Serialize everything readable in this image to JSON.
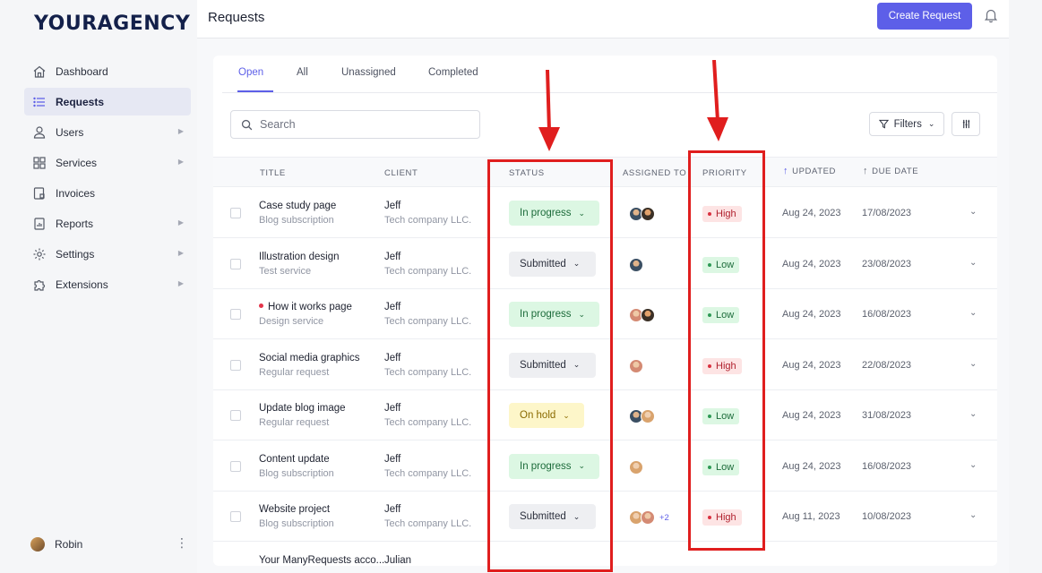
{
  "sidebar": {
    "logo": "YOURAGENCY",
    "items": [
      {
        "label": "Dashboard",
        "icon": "home-icon",
        "has_submenu": false,
        "active": false
      },
      {
        "label": "Requests",
        "icon": "list-icon",
        "has_submenu": false,
        "active": true
      },
      {
        "label": "Users",
        "icon": "users-icon",
        "has_submenu": true,
        "active": false
      },
      {
        "label": "Services",
        "icon": "grid-icon",
        "has_submenu": true,
        "active": false
      },
      {
        "label": "Invoices",
        "icon": "invoice-icon",
        "has_submenu": false,
        "active": false
      },
      {
        "label": "Reports",
        "icon": "report-icon",
        "has_submenu": true,
        "active": false
      },
      {
        "label": "Settings",
        "icon": "gear-icon",
        "has_submenu": true,
        "active": false
      },
      {
        "label": "Extensions",
        "icon": "puzzle-icon",
        "has_submenu": true,
        "active": false
      }
    ],
    "user": {
      "name": "Robin"
    }
  },
  "header": {
    "title": "Requests",
    "create_label": "Create Request"
  },
  "tabs": [
    {
      "label": "Open",
      "active": true
    },
    {
      "label": "All",
      "active": false
    },
    {
      "label": "Unassigned",
      "active": false
    },
    {
      "label": "Completed",
      "active": false
    }
  ],
  "toolbar": {
    "search_placeholder": "Search",
    "filters_label": "Filters"
  },
  "table": {
    "columns": {
      "title": "TITLE",
      "client": "CLIENT",
      "status": "STATUS",
      "assigned": "ASSIGNED TO",
      "priority": "PRIORITY",
      "updated": "UPDATED",
      "due": "DUE DATE"
    },
    "rows": [
      {
        "title": "Case study page",
        "subtitle": "Blog subscription",
        "client": "Jeff",
        "company": "Tech company LLC.",
        "status": "In progress",
        "status_kind": "progress",
        "avatars": [
          "a1",
          "a2"
        ],
        "extra": "",
        "priority": "High",
        "priority_kind": "high",
        "updated": "Aug 24, 2023",
        "due": "17/08/2023",
        "flag": false
      },
      {
        "title": "Illustration design",
        "subtitle": "Test service",
        "client": "Jeff",
        "company": "Tech company LLC.",
        "status": "Submitted",
        "status_kind": "submitted",
        "avatars": [
          "a1"
        ],
        "extra": "",
        "priority": "Low",
        "priority_kind": "low",
        "updated": "Aug 24, 2023",
        "due": "23/08/2023",
        "flag": false
      },
      {
        "title": "How it works page",
        "subtitle": "Design service",
        "client": "Jeff",
        "company": "Tech company LLC.",
        "status": "In progress",
        "status_kind": "progress",
        "avatars": [
          "a3",
          "a2"
        ],
        "extra": "",
        "priority": "Low",
        "priority_kind": "low",
        "updated": "Aug 24, 2023",
        "due": "16/08/2023",
        "flag": true
      },
      {
        "title": "Social media graphics",
        "subtitle": "Regular request",
        "client": "Jeff",
        "company": "Tech company LLC.",
        "status": "Submitted",
        "status_kind": "submitted",
        "avatars": [
          "a3"
        ],
        "extra": "",
        "priority": "High",
        "priority_kind": "high",
        "updated": "Aug 24, 2023",
        "due": "22/08/2023",
        "flag": false
      },
      {
        "title": "Update blog image",
        "subtitle": "Regular request",
        "client": "Jeff",
        "company": "Tech company LLC.",
        "status": "On hold",
        "status_kind": "hold",
        "avatars": [
          "a1",
          "a4"
        ],
        "extra": "",
        "priority": "Low",
        "priority_kind": "low",
        "updated": "Aug 24, 2023",
        "due": "31/08/2023",
        "flag": false
      },
      {
        "title": "Content update",
        "subtitle": "Blog subscription",
        "client": "Jeff",
        "company": "Tech company LLC.",
        "status": "In progress",
        "status_kind": "progress",
        "avatars": [
          "a4"
        ],
        "extra": "",
        "priority": "Low",
        "priority_kind": "low",
        "updated": "Aug 24, 2023",
        "due": "16/08/2023",
        "flag": false
      },
      {
        "title": "Website project",
        "subtitle": "Blog subscription",
        "client": "Jeff",
        "company": "Tech company LLC.",
        "status": "Submitted",
        "status_kind": "submitted",
        "avatars": [
          "a4",
          "a3"
        ],
        "extra": "+2",
        "priority": "High",
        "priority_kind": "high",
        "updated": "Aug 11, 2023",
        "due": "10/08/2023",
        "flag": false
      }
    ],
    "partial_row": {
      "title": "Your ManyRequests acco...",
      "client": "Julian"
    }
  },
  "colors": {
    "accent": "#5d5fe8",
    "annotation": "#e01e1e"
  }
}
